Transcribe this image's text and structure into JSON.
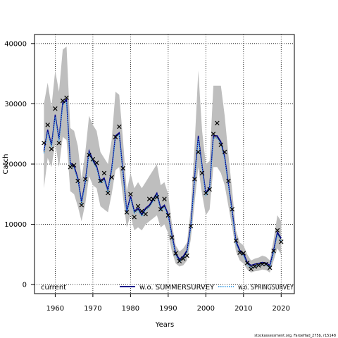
{
  "chart_data": {
    "type": "line",
    "xlabel": "Years",
    "ylabel": "Catch",
    "xlim": [
      1954.5,
      2023.5
    ],
    "ylim": [
      -1500,
      41500
    ],
    "x_ticks": [
      1960,
      1970,
      1980,
      1990,
      2000,
      2010,
      2020
    ],
    "y_ticks": [
      0,
      10000,
      20000,
      30000,
      40000
    ],
    "grid": true,
    "legend_position": "bottom",
    "colors": {
      "band": "#bebebe",
      "current": "#000000",
      "summer": "#00008b",
      "spring": "#4fa8e8",
      "observed": "#000000"
    },
    "series": [
      {
        "name": "current",
        "style": "band-median",
        "x": [
          1957,
          1958,
          1959,
          1960,
          1961,
          1962,
          1963,
          1964,
          1965,
          1966,
          1967,
          1968,
          1969,
          1970,
          1971,
          1972,
          1973,
          1974,
          1975,
          1976,
          1977,
          1978,
          1979,
          1980,
          1981,
          1982,
          1983,
          1984,
          1985,
          1986,
          1987,
          1988,
          1989,
          1990,
          1991,
          1992,
          1993,
          1994,
          1995,
          1996,
          1997,
          1998,
          1999,
          2000,
          2001,
          2002,
          2003,
          2004,
          2005,
          2006,
          2007,
          2008,
          2009,
          2010,
          2011,
          2012,
          2013,
          2014,
          2015,
          2016,
          2017,
          2018,
          2019,
          2020
        ],
        "y": [
          22000,
          25500,
          23000,
          28000,
          24000,
          30000,
          30500,
          20000,
          19500,
          17500,
          13500,
          17000,
          22000,
          20500,
          19500,
          17000,
          17500,
          15500,
          19000,
          24500,
          25000,
          18500,
          12000,
          14500,
          12000,
          12500,
          11500,
          12500,
          13000,
          14000,
          15000,
          12500,
          13000,
          11500,
          8000,
          5000,
          4000,
          4500,
          5500,
          9500,
          17500,
          24500,
          19500,
          15000,
          16000,
          24500,
          24500,
          23500,
          21000,
          16500,
          12000,
          7000,
          5500,
          5000,
          3500,
          3000,
          3200,
          3300,
          3500,
          3400,
          3000,
          5500,
          8500,
          7500
        ],
        "lower": [
          16000,
          21000,
          19500,
          23500,
          19500,
          24500,
          24000,
          15500,
          15000,
          13000,
          10500,
          13500,
          18000,
          16500,
          16000,
          13000,
          12500,
          12000,
          15000,
          19000,
          19500,
          14500,
          9500,
          11500,
          9000,
          9500,
          9000,
          10000,
          10500,
          11000,
          11500,
          9500,
          10000,
          8500,
          5500,
          3500,
          3000,
          3200,
          4000,
          7500,
          13500,
          19500,
          15000,
          11500,
          12500,
          19500,
          19500,
          18500,
          16500,
          13000,
          9500,
          5500,
          4000,
          3500,
          2500,
          2000,
          2200,
          2300,
          2500,
          2400,
          2000,
          4000,
          6000,
          5000
        ],
        "upper": [
          30000,
          33500,
          29500,
          35500,
          32000,
          39000,
          39500,
          26000,
          25500,
          23000,
          17500,
          22000,
          28000,
          26500,
          25500,
          22000,
          21000,
          20000,
          24000,
          32000,
          31500,
          24000,
          15500,
          18500,
          16000,
          17000,
          16000,
          17000,
          18000,
          19000,
          20000,
          16500,
          17000,
          15000,
          10000,
          6500,
          5500,
          6000,
          7000,
          12500,
          23000,
          35500,
          25500,
          20000,
          20500,
          33000,
          33000,
          33000,
          28000,
          21500,
          15500,
          9000,
          7000,
          6500,
          5000,
          4000,
          4300,
          4500,
          4800,
          4600,
          4000,
          7500,
          11500,
          10500
        ]
      },
      {
        "name": "w.o. SUMMERSURVEY",
        "style": "line",
        "x": [
          1957,
          1958,
          1959,
          1960,
          1961,
          1962,
          1963,
          1964,
          1965,
          1966,
          1967,
          1968,
          1969,
          1970,
          1971,
          1972,
          1973,
          1974,
          1975,
          1976,
          1977,
          1978,
          1979,
          1980,
          1981,
          1982,
          1983,
          1984,
          1985,
          1986,
          1987,
          1988,
          1989,
          1990,
          1991,
          1992,
          1993,
          1994,
          1995,
          1996,
          1997,
          1998,
          1999,
          2000,
          2001,
          2002,
          2003,
          2004,
          2005,
          2006,
          2007,
          2008,
          2009,
          2010,
          2011,
          2012,
          2013,
          2014,
          2015,
          2016,
          2017,
          2018,
          2019,
          2020
        ],
        "y": [
          22200,
          25700,
          23200,
          28200,
          24200,
          30200,
          30700,
          20200,
          19700,
          17700,
          13700,
          17200,
          22200,
          20700,
          19700,
          17200,
          17700,
          15700,
          19200,
          24700,
          25200,
          18700,
          12200,
          14700,
          12200,
          12700,
          11700,
          12700,
          13200,
          14200,
          15200,
          12700,
          13200,
          11700,
          8200,
          5200,
          4200,
          4700,
          5700,
          9700,
          17700,
          24700,
          19700,
          15200,
          16200,
          24700,
          24700,
          23700,
          21200,
          16700,
          12200,
          7200,
          5700,
          5200,
          3700,
          3200,
          3400,
          3500,
          3700,
          3600,
          3200,
          5700,
          8700,
          7700
        ]
      },
      {
        "name": "w.o. SPRINGSURVEY",
        "style": "dotted",
        "x": [
          1957,
          1958,
          1959,
          1960,
          1961,
          1962,
          1963,
          1964,
          1965,
          1966,
          1967,
          1968,
          1969,
          1970,
          1971,
          1972,
          1973,
          1974,
          1975,
          1976,
          1977,
          1978,
          1979,
          1980,
          1981,
          1982,
          1983,
          1984,
          1985,
          1986,
          1987,
          1988,
          1989,
          1990,
          1991,
          1992,
          1993,
          1994,
          1995,
          1996,
          1997,
          1998,
          1999,
          2000,
          2001,
          2002,
          2003,
          2004,
          2005,
          2006,
          2007,
          2008,
          2009,
          2010,
          2011,
          2012,
          2013,
          2014,
          2015,
          2016,
          2017,
          2018,
          2019,
          2020
        ],
        "y": [
          21800,
          25300,
          22800,
          27800,
          23800,
          29800,
          30300,
          19800,
          19300,
          17300,
          13300,
          16800,
          21800,
          20300,
          19300,
          16800,
          17300,
          15300,
          18800,
          24300,
          24800,
          18300,
          11800,
          14300,
          11800,
          12300,
          11300,
          12300,
          12800,
          13800,
          14800,
          12300,
          12800,
          11300,
          7800,
          4800,
          3800,
          4300,
          5300,
          9300,
          17300,
          24300,
          19300,
          14800,
          15800,
          24300,
          24300,
          23300,
          20800,
          16300,
          11800,
          6800,
          5300,
          4800,
          3300,
          2800,
          3000,
          3100,
          3300,
          3200,
          2800,
          5300,
          8300,
          7300
        ]
      },
      {
        "name": "observed",
        "style": "points",
        "x": [
          1957,
          1958,
          1959,
          1960,
          1961,
          1962,
          1963,
          1964,
          1965,
          1966,
          1967,
          1968,
          1969,
          1970,
          1971,
          1972,
          1973,
          1974,
          1975,
          1976,
          1977,
          1978,
          1979,
          1980,
          1981,
          1982,
          1983,
          1984,
          1985,
          1986,
          1987,
          1988,
          1989,
          1990,
          1991,
          1992,
          1993,
          1994,
          1995,
          1996,
          1997,
          1998,
          1999,
          2000,
          2001,
          2002,
          2003,
          2004,
          2005,
          2006,
          2007,
          2008,
          2009,
          2010,
          2011,
          2012,
          2013,
          2014,
          2015,
          2016,
          2017,
          2018,
          2019,
          2020
        ],
        "y": [
          23500,
          26500,
          22500,
          29200,
          23500,
          30500,
          31000,
          19500,
          19800,
          17200,
          13200,
          17500,
          21500,
          20800,
          20200,
          17200,
          18500,
          15200,
          17800,
          24500,
          26200,
          19300,
          12000,
          15000,
          11200,
          13000,
          12200,
          11700,
          14200,
          14200,
          14500,
          12500,
          14200,
          11500,
          7800,
          5200,
          3900,
          4300,
          4800,
          9700,
          17500,
          22000,
          18500,
          15200,
          15800,
          25000,
          26800,
          23200,
          22000,
          17200,
          12500,
          7300,
          5300,
          5200,
          3600,
          2600,
          3000,
          3200,
          3400,
          3400,
          2800,
          5600,
          9000,
          7100
        ]
      }
    ],
    "credit": "stockassessment.org, FaroeHad_275b, r15148"
  }
}
